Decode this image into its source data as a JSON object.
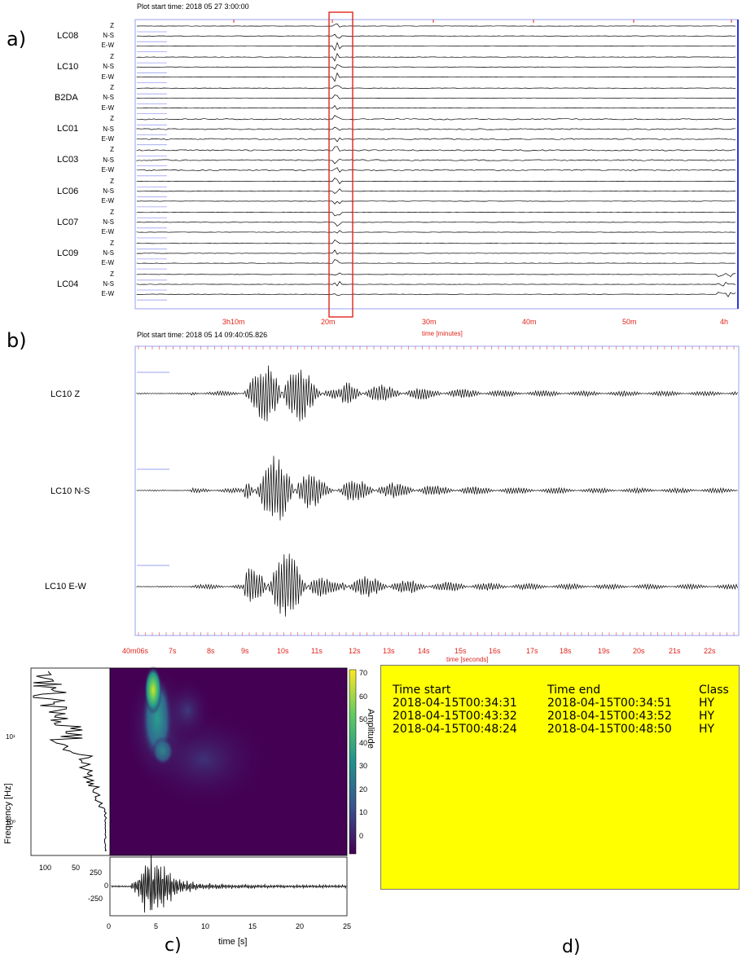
{
  "panel_a": {
    "letter": "a)",
    "header": "Plot start time: 2018 05 27 3:00:00",
    "stations": [
      "LC08",
      "LC10",
      "B2DA",
      "LC01",
      "LC03",
      "LC06",
      "LC07",
      "LC09",
      "LC04"
    ],
    "components": [
      "Z",
      "N-S",
      "E-W"
    ],
    "x_ticks": [
      "3h10m",
      "20m",
      "30m",
      "40m",
      "50m",
      "4h"
    ],
    "x_label": "time [minutes]"
  },
  "panel_b": {
    "letter": "b)",
    "header": "Plot start time: 2018 05 14 09:40:05.826",
    "traces": [
      "LC10 Z",
      "LC10 N-S",
      "LC10 E-W"
    ],
    "x_ticks": [
      "40m06s",
      "7s",
      "8s",
      "9s",
      "10s",
      "11s",
      "12s",
      "13s",
      "14s",
      "15s",
      "16s",
      "17s",
      "18s",
      "19s",
      "20s",
      "21s",
      "22s"
    ],
    "x_label": "time [seconds]"
  },
  "panel_c": {
    "letter": "c)",
    "ylabel": "Frequency [Hz]",
    "yticks": [
      "10¹",
      "10⁰"
    ],
    "spectrum_xticks": [
      "100",
      "50"
    ],
    "colorbar_label": "Amplitude",
    "colorbar_ticks": [
      "70",
      "60",
      "50",
      "40",
      "30",
      "20",
      "10",
      "0"
    ],
    "wave_yticks": [
      "250",
      "0",
      "-250"
    ],
    "xticks": [
      "0",
      "5",
      "10",
      "15",
      "20",
      "25"
    ],
    "xlabel": "time [s]"
  },
  "panel_d": {
    "letter": "d)",
    "headers": [
      "Time start",
      "Time end",
      "Class"
    ],
    "rows": [
      [
        "2018-04-15T00:34:31",
        "2018-04-15T00:34:51",
        "HY"
      ],
      [
        "2018-04-15T00:43:32",
        "2018-04-15T00:43:52",
        "HY"
      ],
      [
        "2018-04-15T00:48:24",
        "2018-04-15T00:48:50",
        "HY"
      ]
    ],
    "background": "#ffff00"
  },
  "colors": {
    "tick_red": "#e0241b",
    "frame_blue": "#9aa0f0",
    "highlight_box": "#e0241b"
  }
}
